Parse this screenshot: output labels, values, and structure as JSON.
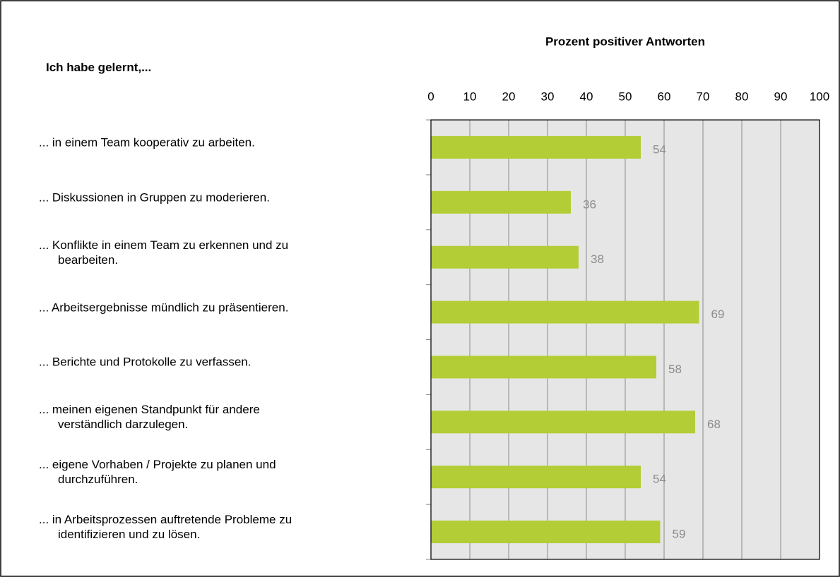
{
  "chart_data": {
    "type": "bar",
    "orientation": "horizontal",
    "title": "Prozent positiver  Antworten",
    "ylabel": "Ich habe gelernt,...",
    "categories": [
      "... in einem Team kooperativ zu arbeiten.",
      "... Diskussionen in Gruppen zu moderieren.",
      "... Konflikte in einem Team zu erkennen und zu\nbearbeiten.",
      "... Arbeitsergebnisse mündlich zu präsentieren.",
      "... Berichte und Protokolle zu verfassen.",
      "... meinen eigenen Standpunkt für andere\nverständlich darzulegen.",
      "... eigene Vorhaben / Projekte zu planen und\ndurchzuführen.",
      "... in Arbeitsprozessen auftretende Probleme zu\nidentifizieren und zu lösen."
    ],
    "values": [
      54,
      36,
      38,
      69,
      58,
      68,
      54,
      59
    ],
    "color": "#b2cd35",
    "xlim": [
      0,
      100
    ],
    "xticks": [
      0,
      10,
      20,
      30,
      40,
      50,
      60,
      70,
      80,
      90,
      100
    ],
    "grid": true
  }
}
